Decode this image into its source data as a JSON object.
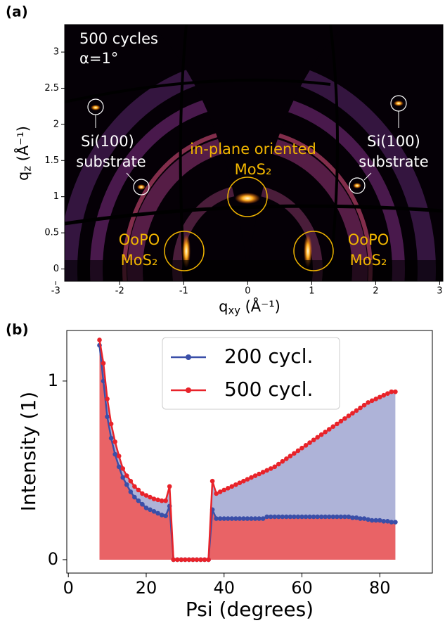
{
  "chart_data": [
    {
      "type": "image",
      "panel_label": "(a)",
      "xlabel": [
        "q",
        "xy",
        " (Å⁻¹)"
      ],
      "ylabel": [
        "q",
        "z",
        " (Å⁻¹)"
      ],
      "xlim": [
        -2.86,
        3.05
      ],
      "ylim": [
        -0.17,
        3.38
      ],
      "xticks": [
        -3,
        -2,
        -1,
        0,
        1,
        2,
        3
      ],
      "yticks": [
        0,
        0.5,
        1,
        1.5,
        2,
        2.5,
        3
      ],
      "annotations": [
        "500 cycles",
        "α=1°",
        "Si(100)",
        "substrate",
        "in-plane oriented",
        "MoS₂",
        "OoPO",
        "MoS₂",
        "Si(100)",
        "substrate",
        "OoPO",
        "MoS₂"
      ]
    },
    {
      "type": "line",
      "panel_label": "(b)",
      "xlabel": "Psi (degrees)",
      "ylabel": "Intensity (1)",
      "xlim": [
        -0.4,
        93.5
      ],
      "ylim": [
        -0.075,
        1.283
      ],
      "xticks": [
        0,
        20,
        40,
        60,
        80
      ],
      "yticks": [
        0,
        1
      ],
      "legend": "upper center",
      "x": [
        8,
        9,
        10,
        11,
        12,
        13,
        14,
        15,
        16,
        17,
        18,
        19,
        20,
        21,
        22,
        23,
        24,
        25,
        26,
        27,
        28,
        29,
        30,
        31,
        32,
        33,
        34,
        35,
        36,
        37,
        38,
        39,
        40,
        41,
        42,
        43,
        44,
        45,
        46,
        47,
        48,
        49,
        50,
        51,
        52,
        53,
        54,
        55,
        56,
        57,
        58,
        59,
        60,
        61,
        62,
        63,
        64,
        65,
        66,
        67,
        68,
        69,
        70,
        71,
        72,
        73,
        74,
        75,
        76,
        77,
        78,
        79,
        80,
        81,
        82,
        83,
        84
      ],
      "series": [
        {
          "name": "200 cycl.",
          "color": "#3a4fa8",
          "values": [
            1.2,
            1.0,
            0.8,
            0.68,
            0.59,
            0.52,
            0.46,
            0.42,
            0.38,
            0.35,
            0.33,
            0.31,
            0.29,
            0.28,
            0.27,
            0.26,
            0.25,
            0.245,
            0.3,
            0,
            0,
            0,
            0,
            0,
            0,
            0,
            0,
            0,
            0,
            0.28,
            0.23,
            0.23,
            0.23,
            0.23,
            0.23,
            0.23,
            0.23,
            0.23,
            0.23,
            0.23,
            0.23,
            0.23,
            0.23,
            0.24,
            0.24,
            0.24,
            0.24,
            0.24,
            0.24,
            0.24,
            0.24,
            0.24,
            0.24,
            0.24,
            0.24,
            0.24,
            0.24,
            0.24,
            0.24,
            0.24,
            0.24,
            0.24,
            0.24,
            0.24,
            0.24,
            0.235,
            0.235,
            0.23,
            0.23,
            0.225,
            0.22,
            0.22,
            0.22,
            0.215,
            0.215,
            0.21,
            0.21
          ]
        },
        {
          "name": "500 cycl.",
          "color": "#e8232a",
          "values": [
            1.23,
            1.1,
            0.9,
            0.76,
            0.66,
            0.58,
            0.51,
            0.47,
            0.44,
            0.41,
            0.39,
            0.37,
            0.36,
            0.35,
            0.34,
            0.335,
            0.33,
            0.33,
            0.41,
            0,
            0,
            0,
            0,
            0,
            0,
            0,
            0,
            0,
            0,
            0.44,
            0.37,
            0.38,
            0.39,
            0.4,
            0.41,
            0.42,
            0.43,
            0.44,
            0.45,
            0.46,
            0.47,
            0.48,
            0.49,
            0.5,
            0.51,
            0.52,
            0.535,
            0.55,
            0.565,
            0.58,
            0.595,
            0.61,
            0.625,
            0.64,
            0.655,
            0.67,
            0.685,
            0.7,
            0.715,
            0.73,
            0.745,
            0.76,
            0.775,
            0.79,
            0.805,
            0.82,
            0.835,
            0.85,
            0.865,
            0.88,
            0.89,
            0.9,
            0.91,
            0.92,
            0.93,
            0.94,
            0.94
          ]
        }
      ]
    }
  ]
}
